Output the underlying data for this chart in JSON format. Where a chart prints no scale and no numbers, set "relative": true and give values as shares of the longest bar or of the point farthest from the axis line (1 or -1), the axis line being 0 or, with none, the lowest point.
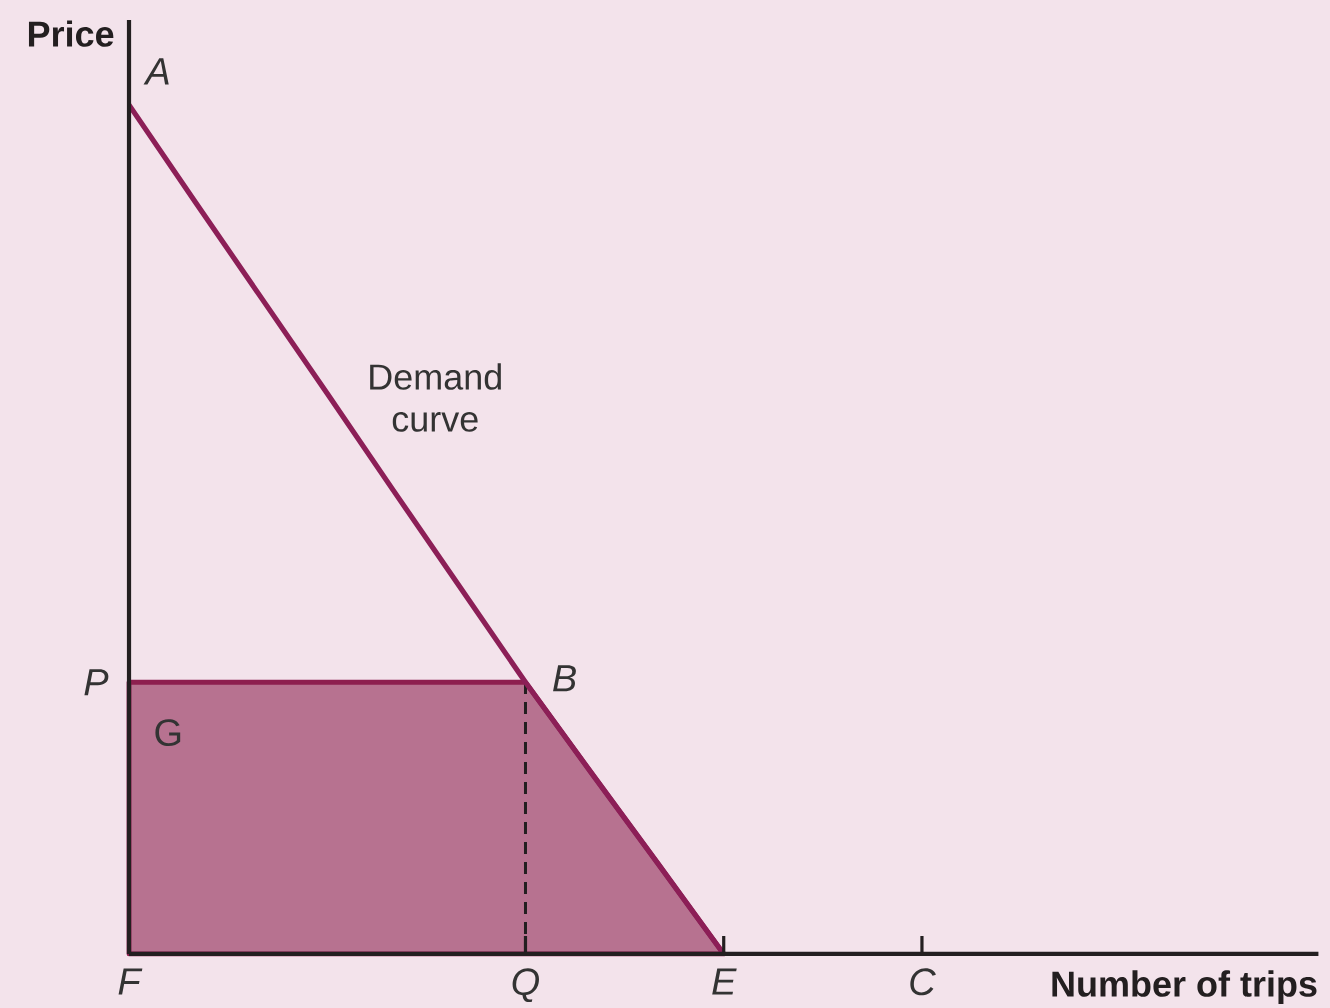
{
  "chart_data": {
    "type": "line",
    "relative": true,
    "xlabel": "Number of trips",
    "ylabel": "Price",
    "categories": [
      "F",
      null,
      null,
      null,
      null,
      null,
      "Q",
      null,
      null,
      "E",
      null,
      null,
      "C",
      null,
      null,
      null,
      null,
      null,
      null
    ],
    "series": [
      {
        "type": "area",
        "color": "#b77290",
        "values": [
          0.32,
          0.32,
          0.32,
          0.32,
          0.32,
          0.32,
          0.32,
          0.213,
          0.107,
          0,
          null,
          null,
          null,
          null,
          null,
          null,
          null,
          null,
          null
        ]
      },
      {
        "name": "Demand curve",
        "color": "#8c1f57",
        "values": [
          1,
          0.886,
          0.773,
          0.66,
          0.546,
          0.433,
          0.32,
          0.213,
          0.107,
          0,
          null,
          null,
          null,
          null,
          null,
          null,
          null,
          null,
          null
        ]
      }
    ],
    "ref_lines": [
      {
        "axis": "x",
        "value": "Q",
        "line_style": "dashed",
        "color": "#231f20"
      }
    ],
    "annotations": [
      {
        "text": "A",
        "x": "F",
        "y": 1
      },
      {
        "text": "P",
        "x": "F",
        "y": 0.32
      },
      {
        "text": "B",
        "x": "Q",
        "y": 0.32
      },
      "G"
    ]
  }
}
